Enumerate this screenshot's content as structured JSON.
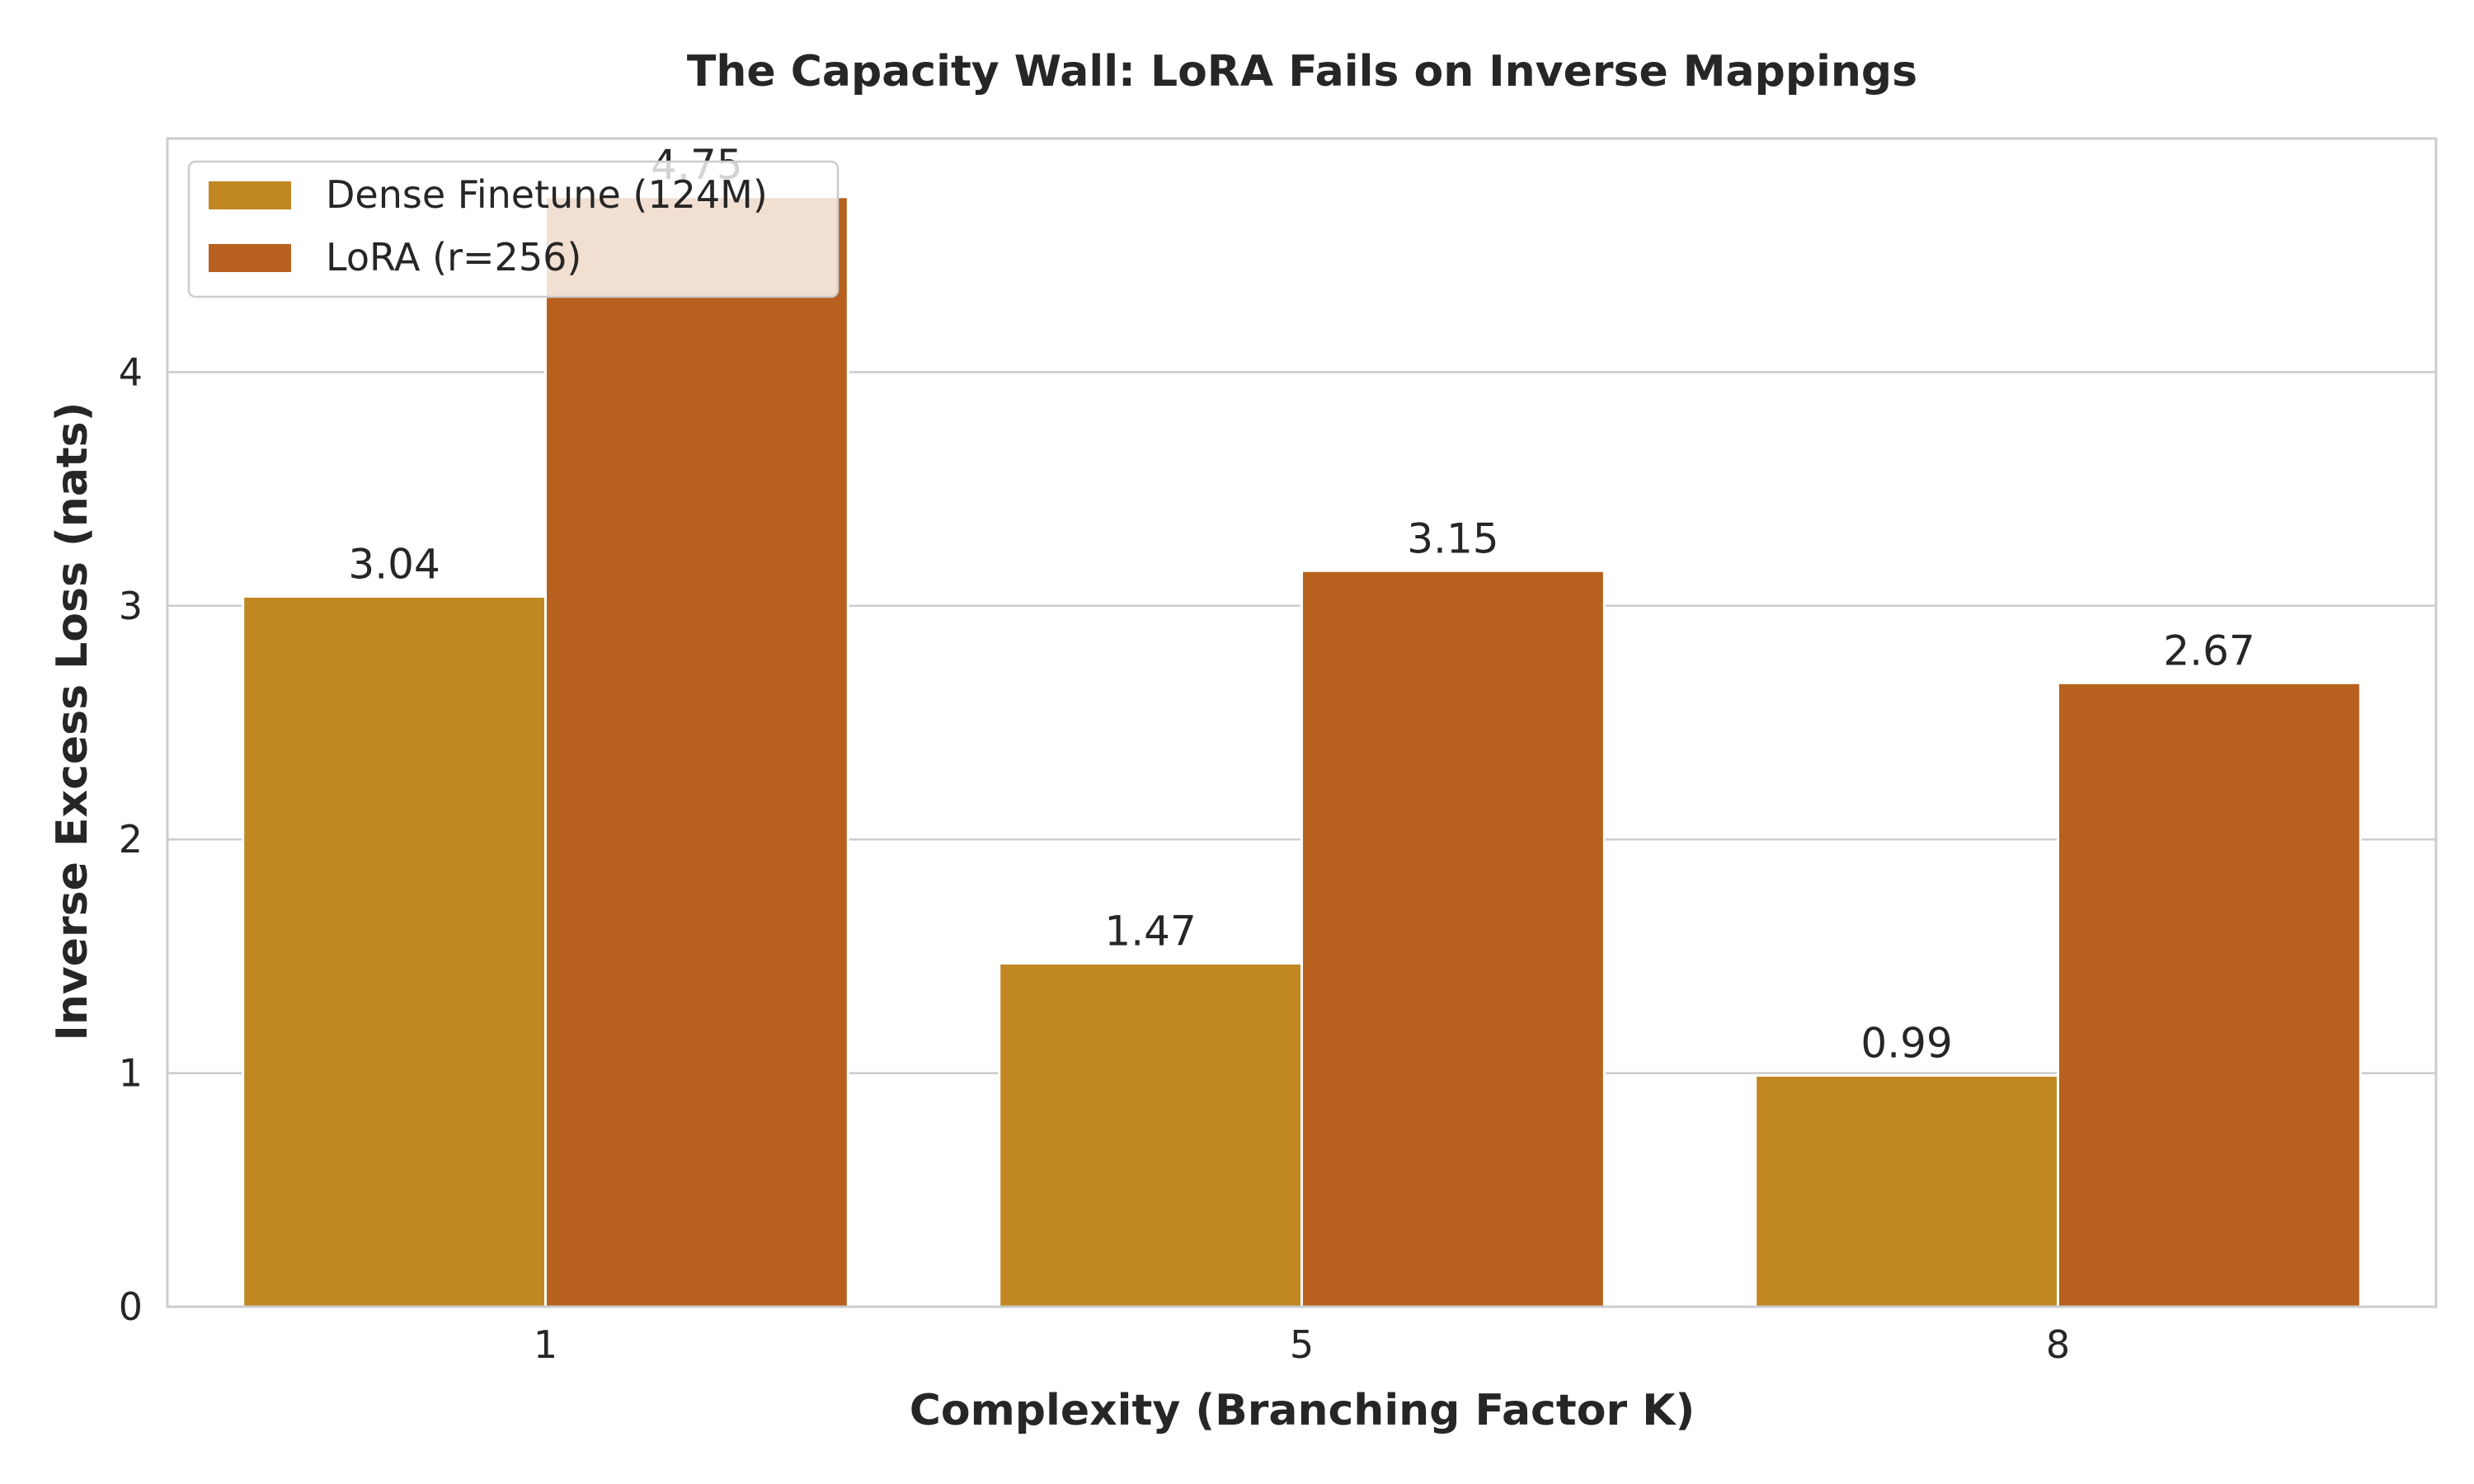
{
  "chart_data": {
    "type": "bar",
    "title": "The Capacity Wall: LoRA Fails on Inverse Mappings",
    "xlabel": "Complexity (Branching Factor K)",
    "ylabel": "Inverse Excess Loss (nats)",
    "categories": [
      "1",
      "5",
      "8"
    ],
    "series": [
      {
        "name": "Dense Finetune (124M)",
        "values": [
          3.04,
          1.47,
          0.99
        ],
        "labels": [
          "3.04",
          "1.47",
          "0.99"
        ],
        "color": "#c08722"
      },
      {
        "name": "LoRA (r=256)",
        "values": [
          4.75,
          3.15,
          2.67
        ],
        "labels": [
          "4.75",
          "3.15",
          "2.67"
        ],
        "color": "#b8601e"
      }
    ],
    "ylim": [
      0,
      5
    ],
    "yticks": [
      "0",
      "1",
      "2",
      "3",
      "4"
    ],
    "grid": true,
    "legend_position": "top-left"
  }
}
